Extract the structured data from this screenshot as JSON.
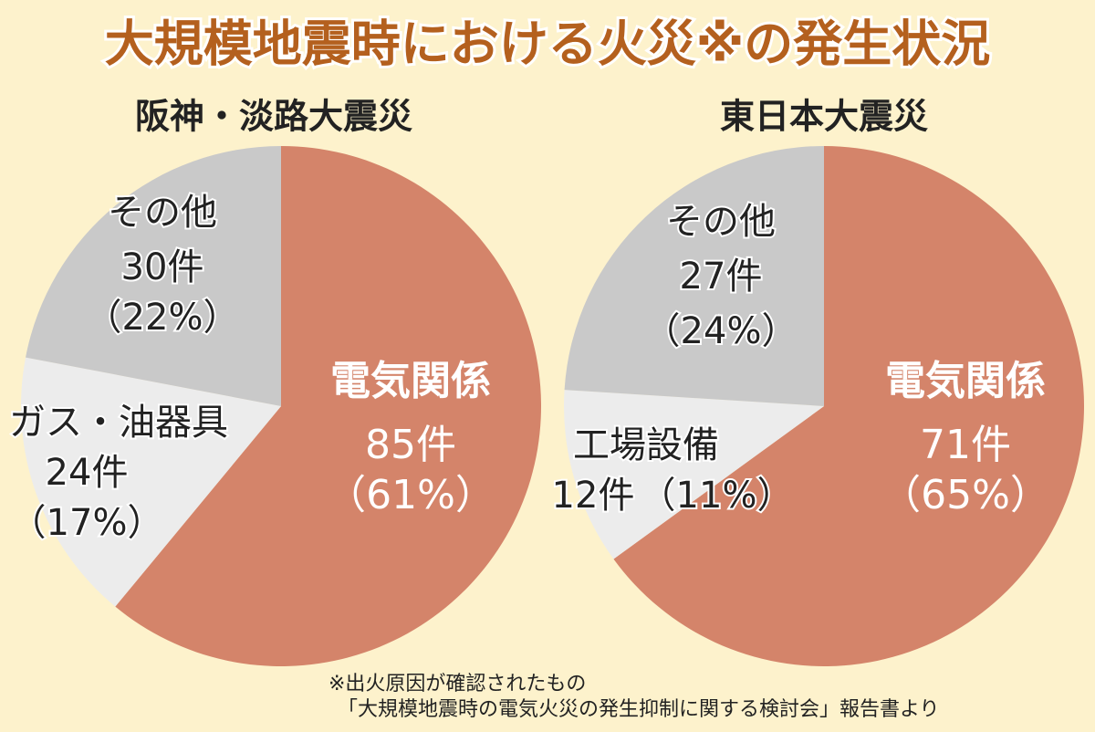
{
  "title": "大規模地震時における火災※の発生状況",
  "notes": [
    "※出火原因が確認されたもの",
    "「大規模地震時の電気火災の発生抑制に関する検討会」報告書より"
  ],
  "chart_data": [
    {
      "type": "pie",
      "title": "阪神・淡路大震災",
      "categories": [
        "電気関係",
        "ガス・油器具",
        "その他"
      ],
      "values": [
        61,
        17,
        22
      ],
      "value_labels": [
        "（61%）",
        "（17%）",
        "（22%）"
      ],
      "counts": [
        85,
        24,
        30
      ],
      "count_labels": [
        "85件",
        "24件",
        "30件"
      ],
      "colors": [
        "#d4846a",
        "#ececec",
        "#c9c9c9"
      ]
    },
    {
      "type": "pie",
      "title": "東日本大震災",
      "categories": [
        "電気関係",
        "工場設備",
        "その他"
      ],
      "values": [
        65,
        11,
        24
      ],
      "value_labels": [
        "（65%）",
        "（11%）",
        "（24%）"
      ],
      "counts": [
        71,
        12,
        27
      ],
      "count_labels": [
        "71件",
        "12件",
        "27件"
      ],
      "colors": [
        "#d4846a",
        "#ececec",
        "#c9c9c9"
      ]
    }
  ]
}
